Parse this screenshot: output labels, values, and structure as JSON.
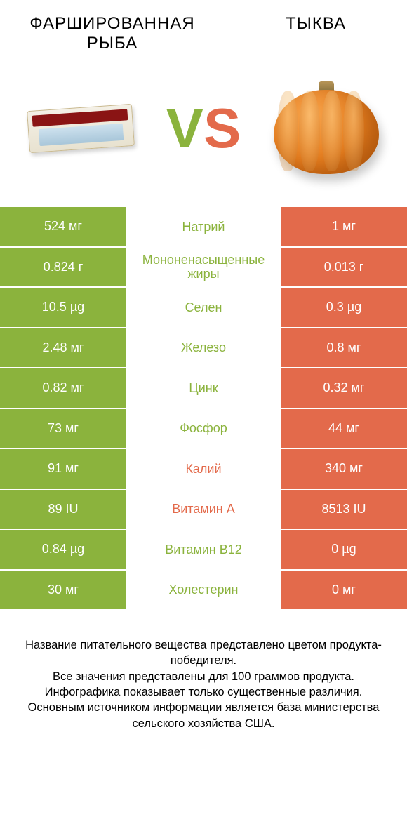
{
  "colors": {
    "left": "#8bb33d",
    "right": "#e36a4b",
    "background": "#ffffff",
    "text": "#000000",
    "white": "#ffffff"
  },
  "fontsize": {
    "title": 24,
    "vs": 80,
    "cell": 18,
    "footer": 16.5
  },
  "header": {
    "left_title": "ФАРШИРОВАННАЯ РЫБА",
    "right_title": "ТЫКВА",
    "vs_v": "V",
    "vs_s": "S",
    "left_image_name": "gefilte-fish-package",
    "right_image_name": "pumpkin"
  },
  "table": {
    "row_height": 57.5,
    "left_col_width": 180,
    "right_col_width": 180,
    "rows": [
      {
        "nutrient": "Натрий",
        "left": "524 мг",
        "right": "1 мг",
        "winner": "left"
      },
      {
        "nutrient": "Мононенасыщенные жиры",
        "left": "0.824 г",
        "right": "0.013 г",
        "winner": "left"
      },
      {
        "nutrient": "Селен",
        "left": "10.5 µg",
        "right": "0.3 µg",
        "winner": "left"
      },
      {
        "nutrient": "Железо",
        "left": "2.48 мг",
        "right": "0.8 мг",
        "winner": "left"
      },
      {
        "nutrient": "Цинк",
        "left": "0.82 мг",
        "right": "0.32 мг",
        "winner": "left"
      },
      {
        "nutrient": "Фосфор",
        "left": "73 мг",
        "right": "44 мг",
        "winner": "left"
      },
      {
        "nutrient": "Калий",
        "left": "91 мг",
        "right": "340 мг",
        "winner": "right"
      },
      {
        "nutrient": "Витамин A",
        "left": "89 IU",
        "right": "8513 IU",
        "winner": "right"
      },
      {
        "nutrient": "Витамин B12",
        "left": "0.84 µg",
        "right": "0 µg",
        "winner": "left"
      },
      {
        "nutrient": "Холестерин",
        "left": "30 мг",
        "right": "0 мг",
        "winner": "left"
      }
    ]
  },
  "footer": {
    "line1": "Название питательного вещества представлено цветом продукта-победителя.",
    "line2": "Все значения представлены для 100 граммов продукта.",
    "line3": "Инфографика показывает только существенные различия.",
    "line4": "Основным источником информации является база министерства сельского хозяйства США."
  }
}
